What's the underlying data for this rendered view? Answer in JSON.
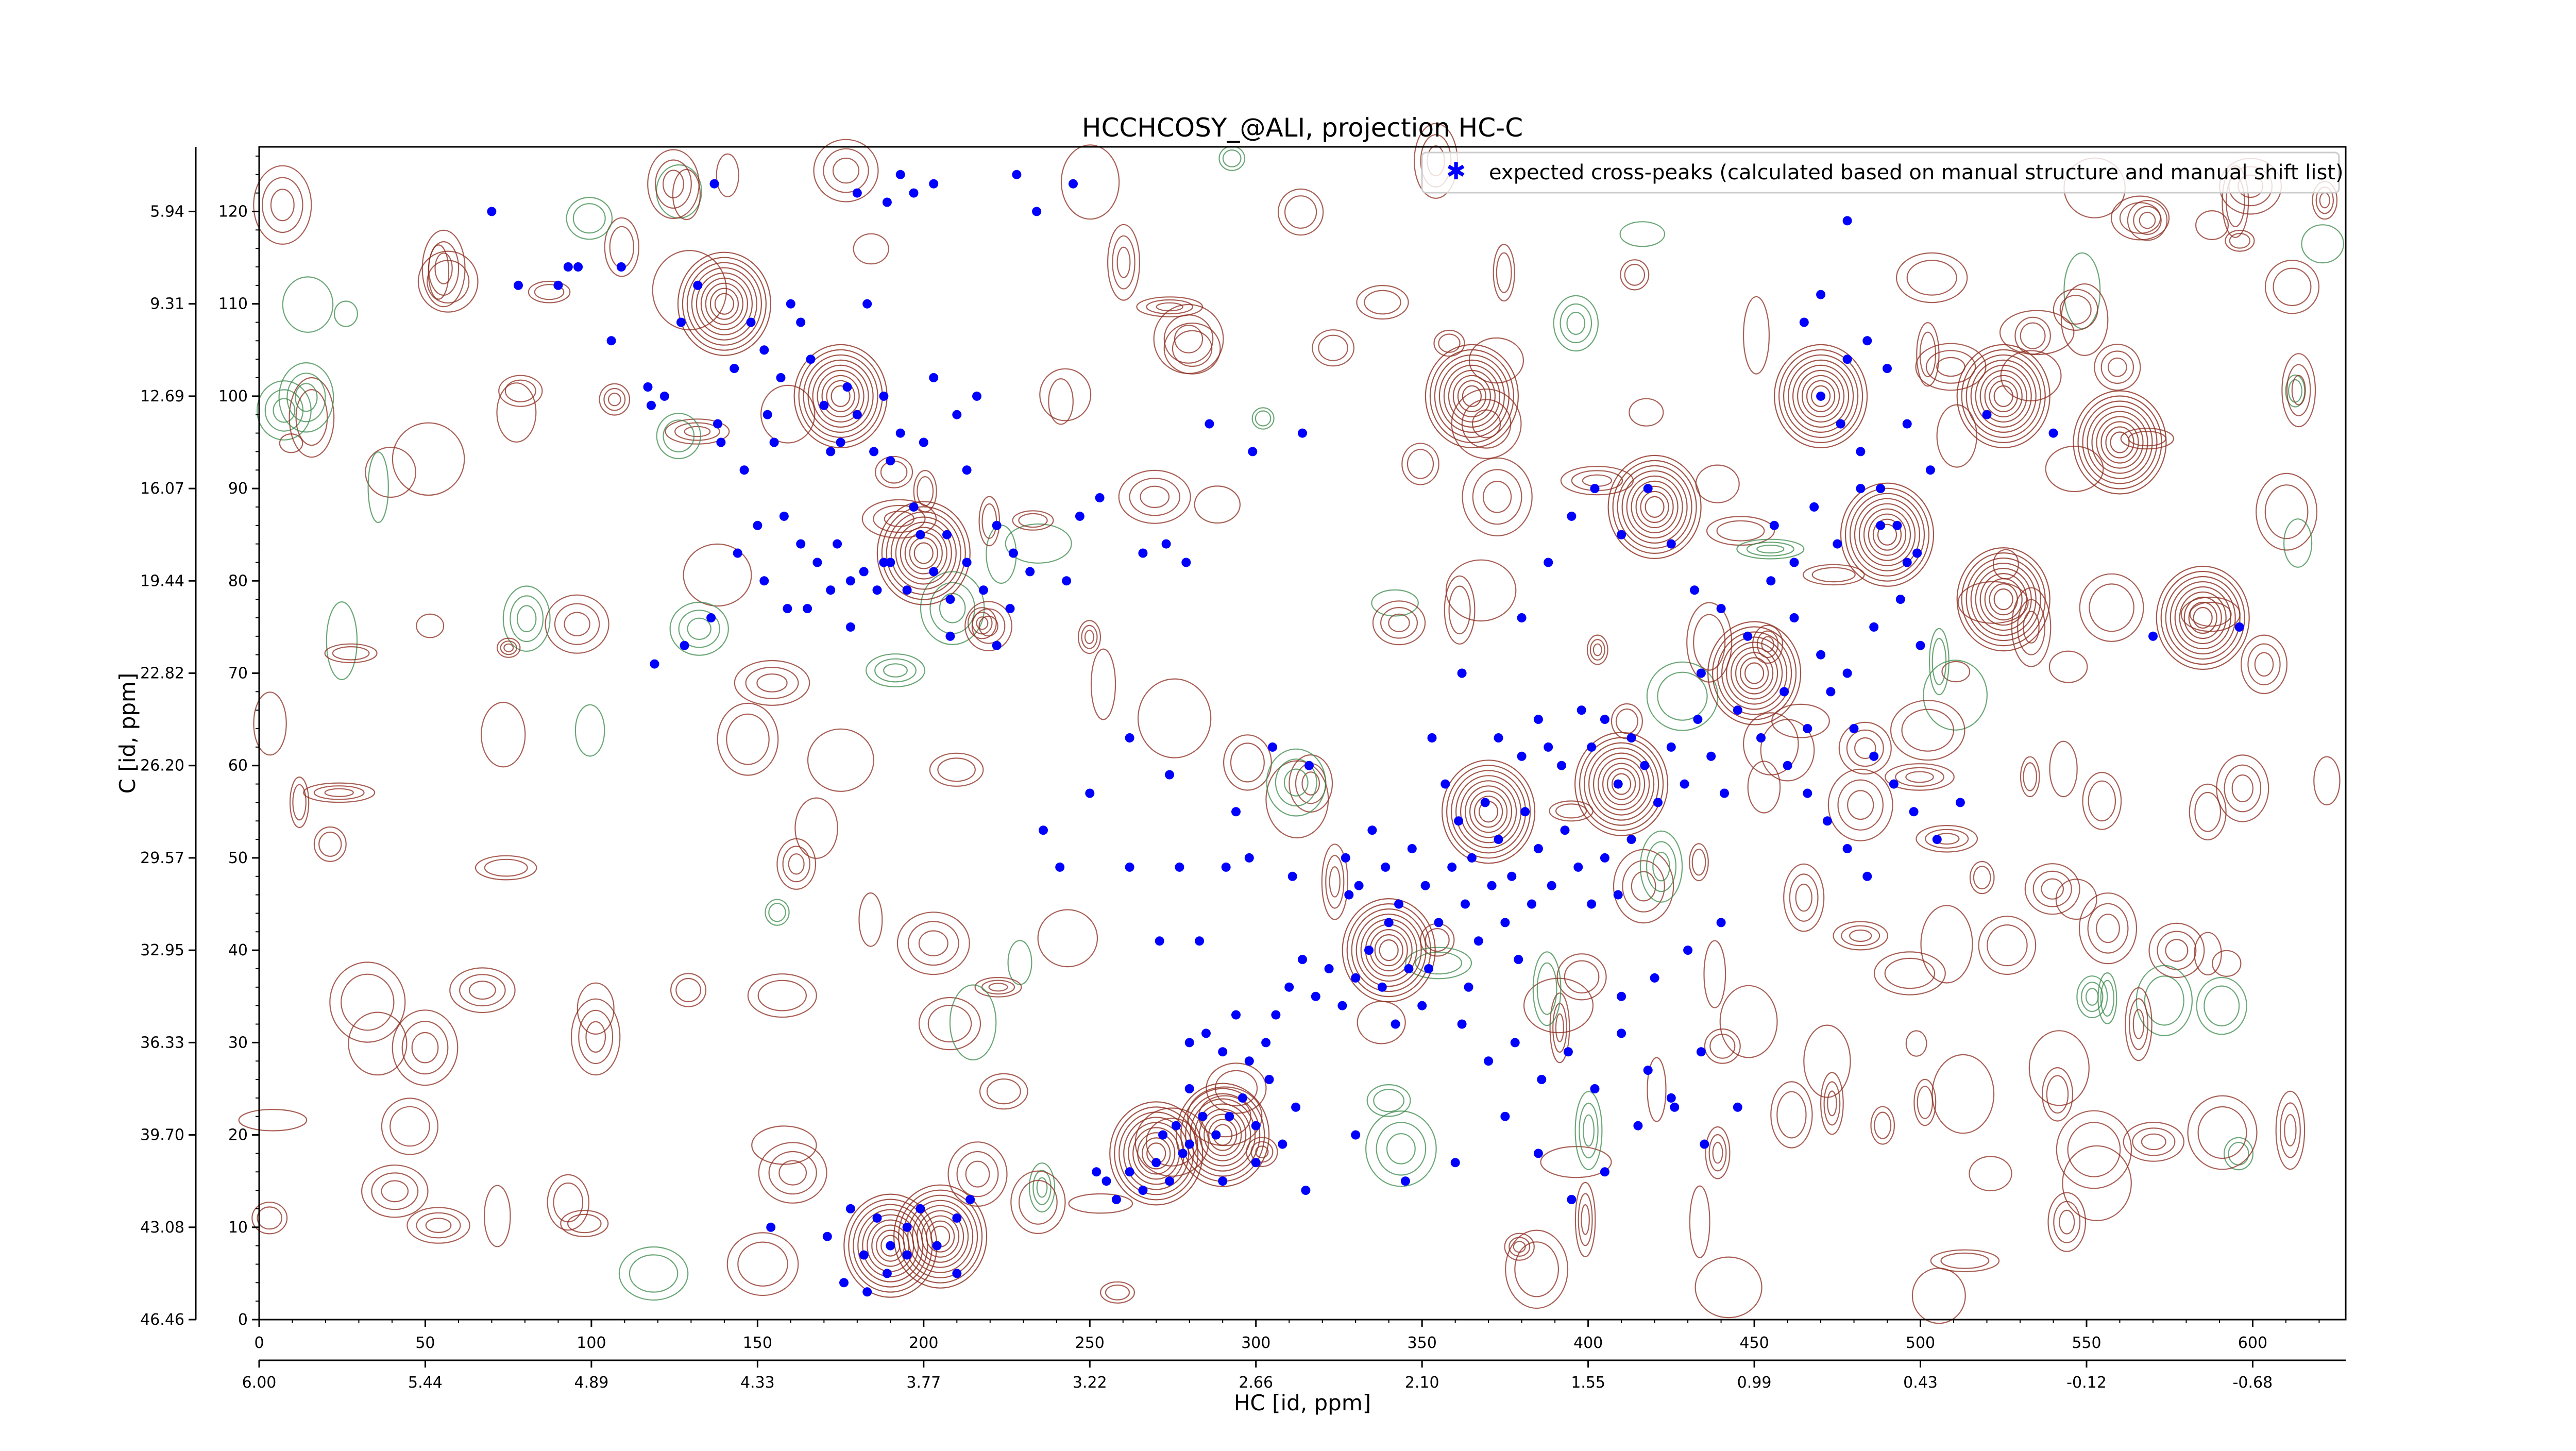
{
  "chart_data": {
    "type": "scatter",
    "title": "HCCHCOSY_@ALI, projection HC-C",
    "xlabel": "HC [id, ppm]",
    "ylabel": "C [id, ppm]",
    "xlim": [
      0,
      628
    ],
    "ylim": [
      0,
      127
    ],
    "x_index_ticks": [
      0,
      50,
      100,
      150,
      200,
      250,
      300,
      350,
      400,
      450,
      500,
      550,
      600
    ],
    "x_ppm_ticks": [
      {
        "at": 0,
        "label": "6.00"
      },
      {
        "at": 50,
        "label": "5.44"
      },
      {
        "at": 100,
        "label": "4.89"
      },
      {
        "at": 150,
        "label": "4.33"
      },
      {
        "at": 200,
        "label": "3.77"
      },
      {
        "at": 250,
        "label": "3.22"
      },
      {
        "at": 300,
        "label": "2.66"
      },
      {
        "at": 350,
        "label": "2.10"
      },
      {
        "at": 400,
        "label": "1.55"
      },
      {
        "at": 450,
        "label": "0.99"
      },
      {
        "at": 500,
        "label": "0.43"
      },
      {
        "at": 550,
        "label": "-0.12"
      },
      {
        "at": 600,
        "label": "-0.68"
      }
    ],
    "y_index_ticks": [
      0,
      10,
      20,
      30,
      40,
      50,
      60,
      70,
      80,
      90,
      100,
      110,
      120
    ],
    "y_ppm_ticks": [
      {
        "at": 0,
        "label": "46.46"
      },
      {
        "at": 10,
        "label": "43.08"
      },
      {
        "at": 20,
        "label": "39.70"
      },
      {
        "at": 30,
        "label": "36.33"
      },
      {
        "at": 40,
        "label": "32.95"
      },
      {
        "at": 50,
        "label": "29.57"
      },
      {
        "at": 60,
        "label": "26.20"
      },
      {
        "at": 70,
        "label": "22.82"
      },
      {
        "at": 80,
        "label": "19.44"
      },
      {
        "at": 90,
        "label": "16.07"
      },
      {
        "at": 100,
        "label": "12.69"
      },
      {
        "at": 110,
        "label": "9.31"
      },
      {
        "at": 120,
        "label": "5.94"
      }
    ],
    "legend": {
      "placement": "top-right",
      "entries": [
        "expected cross-peaks (calculated based on manual structure and manual shift list)"
      ]
    },
    "colors": {
      "peaks": "#0000ff",
      "positive_contour": "#8b2a1c",
      "negative_contour": "#3a8a4a"
    },
    "series": [
      {
        "name": "expected cross-peaks (calculated based on manual structure and manual shift list)",
        "points": [
          [
            70,
            120
          ],
          [
            78,
            112
          ],
          [
            90,
            112
          ],
          [
            93,
            114
          ],
          [
            96,
            114
          ],
          [
            106,
            106
          ],
          [
            109,
            114
          ],
          [
            117,
            101
          ],
          [
            118,
            99
          ],
          [
            122,
            100
          ],
          [
            127,
            108
          ],
          [
            132,
            112
          ],
          [
            137,
            123
          ],
          [
            138,
            97
          ],
          [
            139,
            95
          ],
          [
            143,
            103
          ],
          [
            148,
            108
          ],
          [
            152,
            105
          ],
          [
            153,
            98
          ],
          [
            155,
            95
          ],
          [
            157,
            102
          ],
          [
            160,
            110
          ],
          [
            163,
            108
          ],
          [
            166,
            104
          ],
          [
            170,
            99
          ],
          [
            172,
            94
          ],
          [
            175,
            95
          ],
          [
            177,
            101
          ],
          [
            180,
            98
          ],
          [
            183,
            110
          ],
          [
            185,
            94
          ],
          [
            188,
            100
          ],
          [
            190,
            93
          ],
          [
            193,
            96
          ],
          [
            197,
            88
          ],
          [
            200,
            95
          ],
          [
            203,
            102
          ],
          [
            207,
            85
          ],
          [
            210,
            98
          ],
          [
            213,
            92
          ],
          [
            216,
            100
          ],
          [
            146,
            92
          ],
          [
            150,
            86
          ],
          [
            158,
            87
          ],
          [
            163,
            84
          ],
          [
            168,
            82
          ],
          [
            174,
            84
          ],
          [
            178,
            80
          ],
          [
            182,
            81
          ],
          [
            186,
            79
          ],
          [
            190,
            82
          ],
          [
            195,
            79
          ],
          [
            199,
            85
          ],
          [
            203,
            81
          ],
          [
            208,
            78
          ],
          [
            213,
            82
          ],
          [
            218,
            79
          ],
          [
            222,
            86
          ],
          [
            227,
            83
          ],
          [
            180,
            122
          ],
          [
            189,
            121
          ],
          [
            193,
            124
          ],
          [
            197,
            122
          ],
          [
            203,
            123
          ],
          [
            228,
            124
          ],
          [
            234,
            120
          ],
          [
            245,
            123
          ],
          [
            119,
            71
          ],
          [
            128,
            73
          ],
          [
            136,
            76
          ],
          [
            144,
            83
          ],
          [
            152,
            80
          ],
          [
            159,
            77
          ],
          [
            165,
            77
          ],
          [
            172,
            79
          ],
          [
            178,
            75
          ],
          [
            188,
            82
          ],
          [
            208,
            74
          ],
          [
            222,
            73
          ],
          [
            226,
            77
          ],
          [
            232,
            81
          ],
          [
            243,
            80
          ],
          [
            247,
            87
          ],
          [
            253,
            89
          ],
          [
            266,
            83
          ],
          [
            273,
            84
          ],
          [
            279,
            82
          ],
          [
            286,
            97
          ],
          [
            299,
            94
          ],
          [
            314,
            96
          ],
          [
            362,
            70
          ],
          [
            373,
            63
          ],
          [
            380,
            61
          ],
          [
            385,
            65
          ],
          [
            388,
            62
          ],
          [
            392,
            60
          ],
          [
            398,
            66
          ],
          [
            401,
            62
          ],
          [
            405,
            65
          ],
          [
            409,
            58
          ],
          [
            413,
            63
          ],
          [
            417,
            60
          ],
          [
            421,
            56
          ],
          [
            425,
            62
          ],
          [
            429,
            58
          ],
          [
            433,
            65
          ],
          [
            437,
            61
          ],
          [
            441,
            57
          ],
          [
            353,
            63
          ],
          [
            357,
            58
          ],
          [
            361,
            54
          ],
          [
            365,
            50
          ],
          [
            369,
            56
          ],
          [
            373,
            52
          ],
          [
            377,
            48
          ],
          [
            381,
            55
          ],
          [
            385,
            51
          ],
          [
            389,
            47
          ],
          [
            393,
            53
          ],
          [
            397,
            49
          ],
          [
            401,
            45
          ],
          [
            405,
            50
          ],
          [
            409,
            46
          ],
          [
            413,
            52
          ],
          [
            327,
            50
          ],
          [
            331,
            47
          ],
          [
            335,
            53
          ],
          [
            339,
            49
          ],
          [
            343,
            45
          ],
          [
            347,
            51
          ],
          [
            351,
            47
          ],
          [
            355,
            43
          ],
          [
            359,
            49
          ],
          [
            363,
            45
          ],
          [
            367,
            41
          ],
          [
            371,
            47
          ],
          [
            375,
            43
          ],
          [
            379,
            39
          ],
          [
            383,
            45
          ],
          [
            306,
            33
          ],
          [
            310,
            36
          ],
          [
            314,
            39
          ],
          [
            318,
            35
          ],
          [
            322,
            38
          ],
          [
            326,
            34
          ],
          [
            330,
            37
          ],
          [
            334,
            40
          ],
          [
            338,
            36
          ],
          [
            342,
            32
          ],
          [
            346,
            38
          ],
          [
            350,
            34
          ],
          [
            362,
            32
          ],
          [
            370,
            28
          ],
          [
            378,
            30
          ],
          [
            386,
            26
          ],
          [
            394,
            29
          ],
          [
            402,
            25
          ],
          [
            410,
            31
          ],
          [
            418,
            27
          ],
          [
            426,
            23
          ],
          [
            434,
            29
          ],
          [
            280,
            25
          ],
          [
            284,
            22
          ],
          [
            288,
            20
          ],
          [
            292,
            22
          ],
          [
            296,
            24
          ],
          [
            300,
            21
          ],
          [
            304,
            26
          ],
          [
            308,
            19
          ],
          [
            312,
            23
          ],
          [
            272,
            20
          ],
          [
            276,
            21
          ],
          [
            280,
            19
          ],
          [
            262,
            16
          ],
          [
            266,
            14
          ],
          [
            270,
            17
          ],
          [
            274,
            15
          ],
          [
            278,
            18
          ],
          [
            258,
            13
          ],
          [
            255,
            15
          ],
          [
            252,
            16
          ],
          [
            280,
            30
          ],
          [
            285,
            31
          ],
          [
            290,
            29
          ],
          [
            294,
            33
          ],
          [
            298,
            28
          ],
          [
            303,
            30
          ],
          [
            283,
            41
          ],
          [
            271,
            41
          ],
          [
            262,
            49
          ],
          [
            277,
            49
          ],
          [
            291,
            49
          ],
          [
            298,
            50
          ],
          [
            311,
            48
          ],
          [
            241,
            49
          ],
          [
            236,
            53
          ],
          [
            250,
            57
          ],
          [
            262,
            63
          ],
          [
            274,
            59
          ],
          [
            294,
            55
          ],
          [
            305,
            62
          ],
          [
            316,
            60
          ],
          [
            328,
            46
          ],
          [
            340,
            43
          ],
          [
            352,
            38
          ],
          [
            364,
            36
          ],
          [
            290,
            15
          ],
          [
            300,
            17
          ],
          [
            315,
            14
          ],
          [
            330,
            20
          ],
          [
            345,
            15
          ],
          [
            360,
            17
          ],
          [
            375,
            22
          ],
          [
            385,
            18
          ],
          [
            395,
            13
          ],
          [
            405,
            16
          ],
          [
            415,
            21
          ],
          [
            425,
            24
          ],
          [
            435,
            19
          ],
          [
            445,
            23
          ],
          [
            410,
            35
          ],
          [
            420,
            37
          ],
          [
            430,
            40
          ],
          [
            440,
            43
          ],
          [
            380,
            76
          ],
          [
            388,
            82
          ],
          [
            395,
            87
          ],
          [
            402,
            90
          ],
          [
            410,
            85
          ],
          [
            418,
            90
          ],
          [
            425,
            84
          ],
          [
            432,
            79
          ],
          [
            440,
            77
          ],
          [
            448,
            74
          ],
          [
            455,
            80
          ],
          [
            462,
            76
          ],
          [
            470,
            72
          ],
          [
            478,
            70
          ],
          [
            486,
            75
          ],
          [
            494,
            78
          ],
          [
            500,
            73
          ],
          [
            456,
            86
          ],
          [
            462,
            82
          ],
          [
            468,
            88
          ],
          [
            475,
            84
          ],
          [
            482,
            90
          ],
          [
            488,
            86
          ],
          [
            496,
            82
          ],
          [
            465,
            108
          ],
          [
            470,
            111
          ],
          [
            478,
            104
          ],
          [
            484,
            106
          ],
          [
            490,
            103
          ],
          [
            496,
            97
          ],
          [
            503,
            92
          ],
          [
            470,
            100
          ],
          [
            476,
            97
          ],
          [
            482,
            94
          ],
          [
            488,
            90
          ],
          [
            493,
            86
          ],
          [
            499,
            83
          ],
          [
            480,
            64
          ],
          [
            486,
            61
          ],
          [
            492,
            58
          ],
          [
            498,
            55
          ],
          [
            505,
            52
          ],
          [
            512,
            56
          ],
          [
            460,
            60
          ],
          [
            466,
            57
          ],
          [
            472,
            54
          ],
          [
            478,
            51
          ],
          [
            484,
            48
          ],
          [
            520,
            98
          ],
          [
            540,
            96
          ],
          [
            570,
            74
          ],
          [
            596,
            75
          ],
          [
            478,
            119
          ],
          [
            434,
            70
          ],
          [
            445,
            66
          ],
          [
            452,
            63
          ],
          [
            459,
            68
          ],
          [
            466,
            64
          ],
          [
            473,
            68
          ],
          [
            154,
            10
          ],
          [
            171,
            9
          ],
          [
            178,
            12
          ],
          [
            182,
            7
          ],
          [
            186,
            11
          ],
          [
            190,
            8
          ],
          [
            195,
            10
          ],
          [
            199,
            12
          ],
          [
            204,
            8
          ],
          [
            210,
            11
          ],
          [
            214,
            13
          ],
          [
            176,
            4
          ],
          [
            183,
            3
          ],
          [
            189,
            5
          ],
          [
            195,
            7
          ],
          [
            210,
            5
          ]
        ]
      }
    ]
  }
}
